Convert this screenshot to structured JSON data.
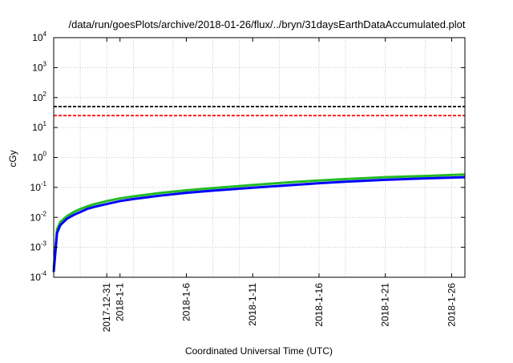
{
  "chart_data": {
    "type": "line",
    "title": "/data/run/goesPlots/archive/2018-01-26/flux/../bryn/31daysEarthDataAccumulated.plot",
    "xlabel": "Coordinated Universal Time (UTC)",
    "ylabel": "cGy",
    "yscale": "log",
    "ylim": [
      0.0001,
      10000
    ],
    "xlim": [
      "2017-12-27",
      "2018-01-27"
    ],
    "grid": true,
    "y_ticks": [
      {
        "base": "10",
        "exp": "-4",
        "value": 0.0001
      },
      {
        "base": "10",
        "exp": "-3",
        "value": 0.001
      },
      {
        "base": "10",
        "exp": "-2",
        "value": 0.01
      },
      {
        "base": "10",
        "exp": "-1",
        "value": 0.1
      },
      {
        "base": "10",
        "exp": "0",
        "value": 1
      },
      {
        "base": "10",
        "exp": "1",
        "value": 10
      },
      {
        "base": "10",
        "exp": "2",
        "value": 100
      },
      {
        "base": "10",
        "exp": "3",
        "value": 1000
      },
      {
        "base": "10",
        "exp": "4",
        "value": 10000
      }
    ],
    "x_ticks": [
      {
        "label": "2017-12-31",
        "date": "2017-12-31"
      },
      {
        "label": "2018-1-1",
        "date": "2018-01-01"
      },
      {
        "label": "2018-1-6",
        "date": "2018-01-06"
      },
      {
        "label": "2018-1-11",
        "date": "2018-01-11"
      },
      {
        "label": "2018-1-16",
        "date": "2018-01-16"
      },
      {
        "label": "2018-1-21",
        "date": "2018-01-21"
      },
      {
        "label": "2018-1-26",
        "date": "2018-01-26"
      }
    ],
    "x_grid_dates": [
      "2017-12-27",
      "2017-12-29",
      "2017-12-31",
      "2018-01-02",
      "2018-01-05",
      "2018-01-08",
      "2018-01-10",
      "2018-01-13",
      "2018-01-16",
      "2018-01-18",
      "2018-01-21",
      "2018-01-24",
      "2018-01-26"
    ],
    "reference_lines": [
      {
        "value": 50,
        "color": "#000000",
        "style": "dashed"
      },
      {
        "value": 25,
        "color": "#ff0000",
        "style": "dashed"
      }
    ],
    "series": [
      {
        "color": "#22bb22",
        "x": [
          "2017-12-27T00:00",
          "2017-12-27T06:00",
          "2017-12-27T12:00",
          "2017-12-28T00:00",
          "2017-12-28T12:00",
          "2017-12-29T00:00",
          "2017-12-29T12:00",
          "2017-12-30T00:00",
          "2017-12-31T00:00",
          "2018-01-01T00:00",
          "2018-01-02T00:00",
          "2018-01-04T00:00",
          "2018-01-06T00:00",
          "2018-01-08T00:00",
          "2018-01-11T00:00",
          "2018-01-14T00:00",
          "2018-01-16T00:00",
          "2018-01-18T00:00",
          "2018-01-21T00:00",
          "2018-01-24T00:00",
          "2018-01-27T00:00"
        ],
        "y": [
          0.0002,
          0.004,
          0.007,
          0.011,
          0.015,
          0.019,
          0.023,
          0.027,
          0.035,
          0.043,
          0.05,
          0.065,
          0.08,
          0.095,
          0.12,
          0.15,
          0.17,
          0.19,
          0.22,
          0.24,
          0.27
        ]
      },
      {
        "color": "#0000ff",
        "x": [
          "2017-12-27T00:00",
          "2017-12-27T06:00",
          "2017-12-27T12:00",
          "2017-12-28T00:00",
          "2017-12-28T12:00",
          "2017-12-29T00:00",
          "2017-12-29T12:00",
          "2017-12-30T00:00",
          "2017-12-31T00:00",
          "2018-01-01T00:00",
          "2018-01-02T00:00",
          "2018-01-04T00:00",
          "2018-01-06T00:00",
          "2018-01-08T00:00",
          "2018-01-11T00:00",
          "2018-01-14T00:00",
          "2018-01-16T00:00",
          "2018-01-18T00:00",
          "2018-01-21T00:00",
          "2018-01-24T00:00",
          "2018-01-27T00:00"
        ],
        "y": [
          0.00015,
          0.003,
          0.0055,
          0.009,
          0.012,
          0.015,
          0.019,
          0.022,
          0.028,
          0.035,
          0.041,
          0.053,
          0.066,
          0.078,
          0.098,
          0.12,
          0.138,
          0.155,
          0.18,
          0.2,
          0.22
        ]
      }
    ]
  }
}
